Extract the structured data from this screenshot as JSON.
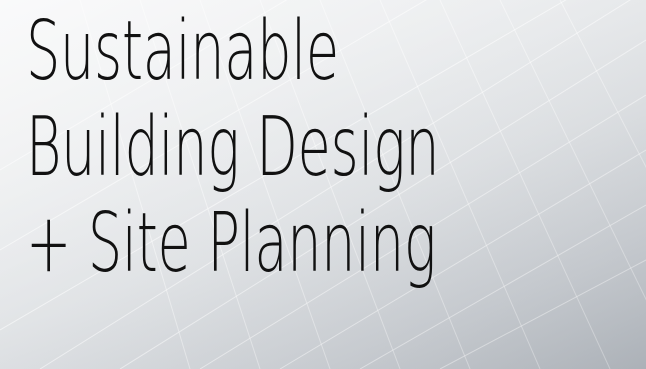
{
  "hero": {
    "title_lines": [
      "Sustainable",
      "Building Design",
      "+ Site Planning"
    ],
    "background": "solar-panel-photo",
    "text_color": "#111111"
  }
}
